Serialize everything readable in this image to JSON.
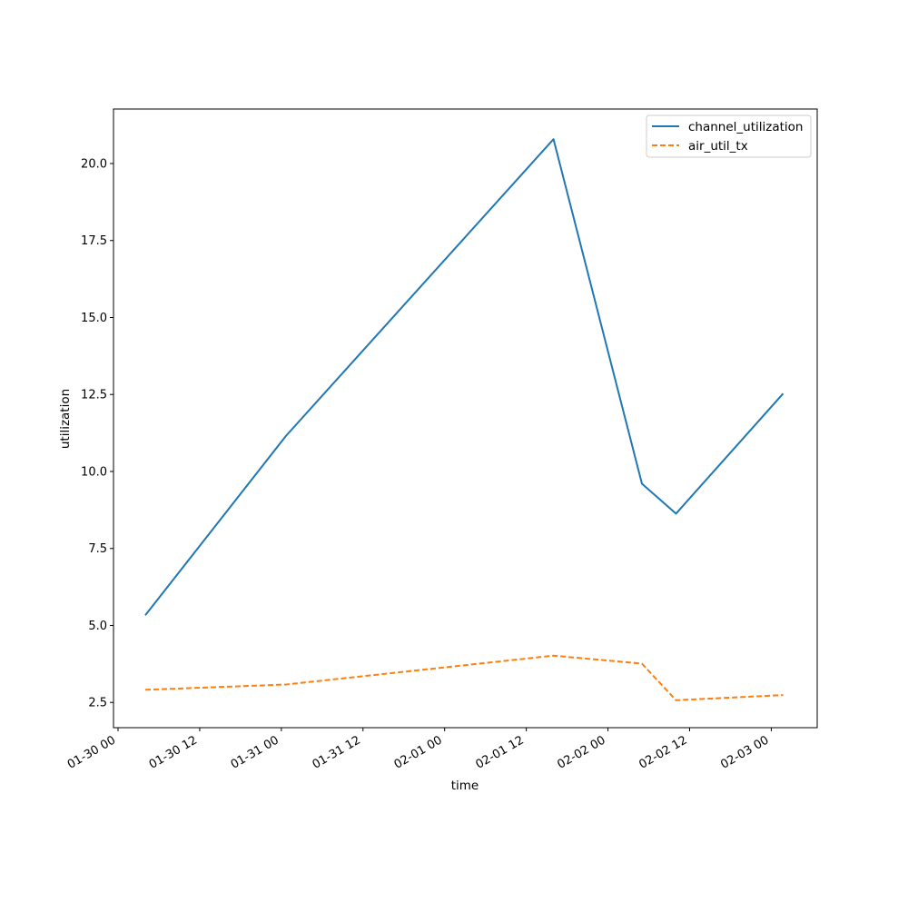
{
  "chart_data": {
    "type": "line",
    "title": "",
    "xlabel": "time",
    "ylabel": "utilization",
    "x_tick_labels": [
      "01-30 00",
      "01-30 12",
      "01-31 00",
      "01-31 12",
      "02-01 00",
      "02-01 12",
      "02-02 00",
      "02-02 12",
      "02-03 00"
    ],
    "x_ticks": [
      "2025-01-30T00:00",
      "2025-01-30T12:00",
      "2025-01-31T00:00",
      "2025-01-31T12:00",
      "2025-02-01T00:00",
      "2025-02-01T12:00",
      "2025-02-02T00:00",
      "2025-02-02T12:00",
      "2025-02-03T00:00"
    ],
    "x_range": [
      "2025-01-29T23:20",
      "2025-02-03T06:45"
    ],
    "y_ticks": [
      2.5,
      5.0,
      7.5,
      10.0,
      12.5,
      15.0,
      17.5,
      20.0
    ],
    "y_tick_labels": [
      "2.5",
      "5.0",
      "7.5",
      "10.0",
      "12.5",
      "15.0",
      "17.5",
      "20.0"
    ],
    "ylim": [
      1.68,
      21.77
    ],
    "grid": false,
    "legend_position": "top-right",
    "x": [
      "2025-01-30T04:00",
      "2025-01-31T00:40",
      "2025-02-01T16:00",
      "2025-02-02T05:00",
      "2025-02-02T10:00",
      "2025-02-03T01:45"
    ],
    "series": [
      {
        "name": "channel_utilization",
        "color": "#1f77b4",
        "style": "solid",
        "values": [
          5.33,
          11.15,
          20.79,
          9.6,
          8.63,
          12.53
        ]
      },
      {
        "name": "air_util_tx",
        "color": "#ff7f0e",
        "style": "dashed",
        "values": [
          2.91,
          3.08,
          4.02,
          3.76,
          2.57,
          2.74
        ]
      }
    ]
  }
}
